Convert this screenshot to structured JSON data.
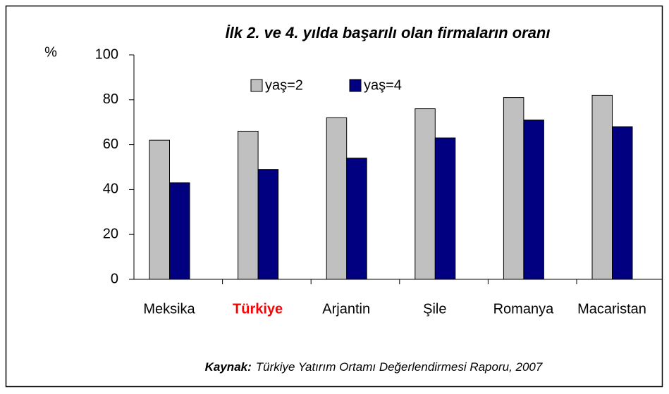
{
  "chart_data": {
    "type": "bar",
    "title": "İlk 2. ve 4. yılda başarılı olan firmaların oranı",
    "y_label": "%",
    "categories": [
      "Meksika",
      "Türkiye",
      "Arjantin",
      "Şile",
      "Romanya",
      "Macaristan"
    ],
    "series": [
      {
        "name": "yaş=2",
        "color": "#c0c0c0",
        "values": [
          62,
          66,
          72,
          76,
          81,
          82
        ]
      },
      {
        "name": "yaş=4",
        "color": "#000080",
        "values": [
          43,
          49,
          54,
          63,
          71,
          68
        ]
      }
    ],
    "ylim": [
      0,
      100
    ],
    "yticks": [
      0,
      20,
      40,
      60,
      80,
      100
    ],
    "grid": false,
    "highlight_category": "Türkiye",
    "highlight_color": "#ff0000",
    "source_label": "Kaynak:",
    "source_text": "Türkiye Yatırım Ortamı Değerlendirmesi Raporu, 2007"
  }
}
